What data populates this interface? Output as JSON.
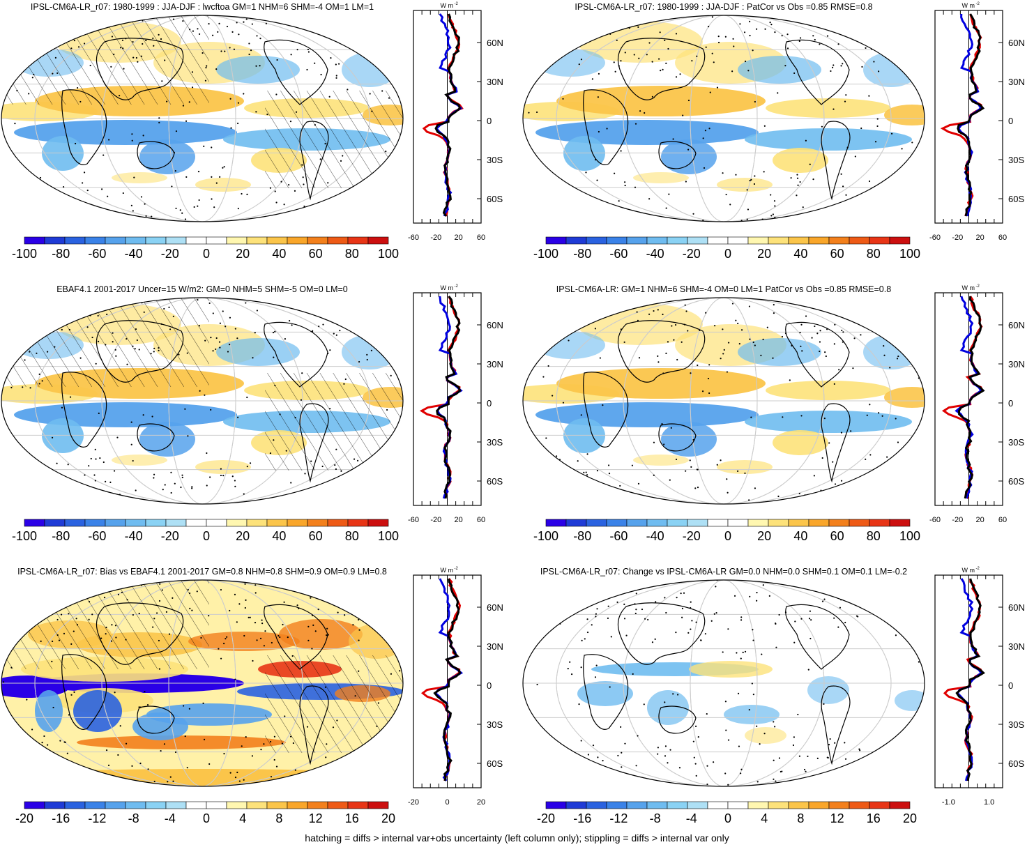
{
  "footer": "hatching = diffs > internal var+obs uncertainty (left column only); stippling = diffs > internal var only",
  "colors": {
    "negative": [
      "#2a00e6",
      "#1f3bd6",
      "#2a62e0",
      "#3a82e8",
      "#56a2ec",
      "#6fbcf0",
      "#8ad2f4",
      "#aee0f5"
    ],
    "positive": [
      "#fff7b0",
      "#fde27a",
      "#fbc54a",
      "#f9a62a",
      "#f3801c",
      "#ee5a16",
      "#e83516",
      "#cc0f0f"
    ],
    "zonal_lines": [
      "#e00000",
      "#0000e0",
      "#000000"
    ]
  },
  "panels": [
    {
      "title": "IPSL-CM6A-LR_r07: 1980-1999 : JJA-DJF : lwcftoa GM=1 NHM=6 SHM=-4 OM=1 LM=1",
      "colorbar_labels": [
        "-100",
        "-80",
        "-60",
        "-40",
        "-20",
        "0",
        "20",
        "40",
        "60",
        "80",
        "100"
      ],
      "zonal_xticks": [
        "-60",
        "-20",
        "20",
        "60"
      ],
      "zonal_units": "W m",
      "zonal_units_exp": "-2",
      "lat_labels": [
        "60N",
        "30N",
        "0",
        "30S",
        "60S"
      ],
      "hatching": true,
      "stippling": true
    },
    {
      "title": "IPSL-CM6A-LR_r07: 1980-1999 : JJA-DJF : PatCor vs Obs =0.85 RMSE=0.8",
      "colorbar_labels": [
        "-100",
        "-80",
        "-60",
        "-40",
        "-20",
        "0",
        "20",
        "40",
        "60",
        "80",
        "100"
      ],
      "zonal_xticks": [
        "-60",
        "-20",
        "20",
        "60"
      ],
      "zonal_units": "W m",
      "zonal_units_exp": "-2",
      "lat_labels": [
        "60N",
        "30N",
        "0",
        "30S",
        "60S"
      ],
      "hatching": false,
      "stippling": true
    },
    {
      "title": "EBAF4.1 2001-2017 Uncer=15 W/m2: GM=0 NHM=5 SHM=-5 OM=0 LM=0",
      "colorbar_labels": [
        "-100",
        "-80",
        "-60",
        "-40",
        "-20",
        "0",
        "20",
        "40",
        "60",
        "80",
        "100"
      ],
      "zonal_xticks": [
        "-60",
        "-20",
        "20",
        "60"
      ],
      "zonal_units": "W m",
      "zonal_units_exp": "-2",
      "lat_labels": [
        "60N",
        "30N",
        "0",
        "30S",
        "60S"
      ],
      "hatching": true,
      "stippling": true
    },
    {
      "title": "IPSL-CM6A-LR: GM=1 NHM=6 SHM=-4 OM=0 LM=1 PatCor vs Obs =0.85 RMSE=0.8",
      "colorbar_labels": [
        "-100",
        "-80",
        "-60",
        "-40",
        "-20",
        "0",
        "20",
        "40",
        "60",
        "80",
        "100"
      ],
      "zonal_xticks": [
        "-60",
        "-20",
        "20",
        "60"
      ],
      "zonal_units": "W m",
      "zonal_units_exp": "-2",
      "lat_labels": [
        "60N",
        "30N",
        "0",
        "30S",
        "60S"
      ],
      "hatching": false,
      "stippling": true
    },
    {
      "title": "IPSL-CM6A-LR_r07: Bias vs EBAF4.1 2001-2017 GM=0.8 NHM=0.8 SHM=0.9 OM=0.9 LM=0.8",
      "colorbar_labels": [
        "-20",
        "-16",
        "-12",
        "-8",
        "-4",
        "0",
        "4",
        "8",
        "12",
        "16",
        "20"
      ],
      "zonal_xticks": [
        "-20",
        "0",
        "20"
      ],
      "zonal_units": "W m",
      "zonal_units_exp": "-2",
      "lat_labels": [
        "60N",
        "30N",
        "0",
        "30S",
        "60S"
      ],
      "hatching": true,
      "stippling": true
    },
    {
      "title": "IPSL-CM6A-LR_r07: Change vs IPSL-CM6A-LR GM=0.0 NHM=0.0 SHM=0.1 OM=0.1 LM=-0.2",
      "colorbar_labels": [
        "-20",
        "-16",
        "-12",
        "-8",
        "-4",
        "0",
        "4",
        "8",
        "12",
        "16",
        "20"
      ],
      "zonal_xticks": [
        "-1.0",
        "1.0"
      ],
      "zonal_units": "W m",
      "zonal_units_exp": "-2",
      "lat_labels": [
        "60N",
        "30N",
        "0",
        "30S",
        "60S"
      ],
      "hatching": false,
      "stippling": true
    }
  ]
}
